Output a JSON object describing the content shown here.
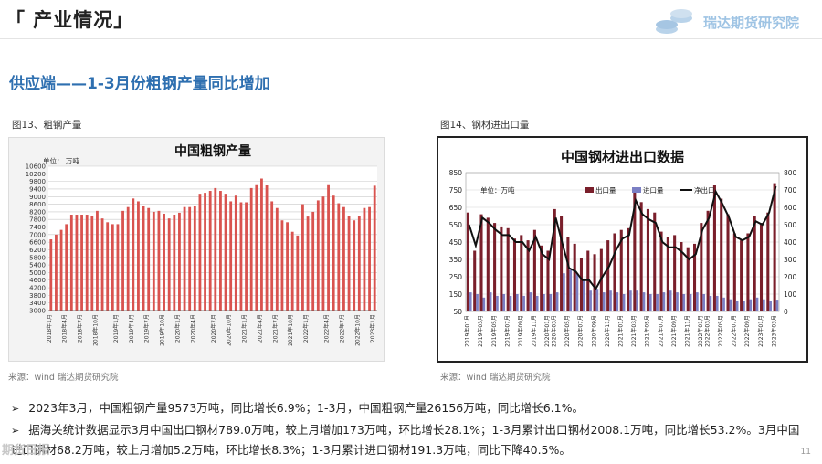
{
  "header": {
    "title": "「 产业情况」",
    "brand_name": "瑞达期货研究院"
  },
  "section": {
    "heading": "供应端——1-3月份粗钢产量同比增加"
  },
  "figures": [
    {
      "caption": "图13、粗钢产量",
      "source": "来源：wind   瑞达期货研究院"
    },
    {
      "caption": "图14、钢材进出口量",
      "source": "来源：wind   瑞达期货研究院"
    }
  ],
  "bullets": [
    "2023年3月，中国粗钢产量9573万吨，同比增长6.9%；1-3月，中国粗钢产量26156万吨，同比增长6.1%。",
    "据海关统计数据显示3月中国出口钢材789.0万吨，较上月增加173万吨，环比增长28.1%；1-3月累计出口钢材2008.1万吨，同比增长53.2%。3月中国进口钢材68.2万吨，较上月增加5.2万吨，环比增长8.3%；1-3月累计进口钢材191.3万吨，同比下降40.5%。"
  ],
  "bullet_mark": "➢",
  "page_number": "11",
  "watermark": "期货日报",
  "colors": {
    "bar_red": "#d9534f",
    "bar_dark_red": "#7a1f2b",
    "bar_import": "#7b7fc4",
    "net_line": "#111111",
    "heading_blue": "#2e6fb0"
  },
  "chart_data": [
    {
      "type": "bar",
      "title": "中国粗钢产量",
      "unit_label": "单位：   万吨",
      "ylim": [
        3000,
        10600
      ],
      "yticks": [
        3000,
        3400,
        3800,
        4200,
        4600,
        5000,
        5400,
        5800,
        6200,
        6600,
        7000,
        7400,
        7800,
        8200,
        8600,
        9000,
        9400,
        9800,
        10200,
        10600
      ],
      "grid": true,
      "x_tick_labels": [
        "2018年1月",
        "2018年4月",
        "2018年7月",
        "2018年10月",
        "2019年1月",
        "2019年4月",
        "2019年7月",
        "2019年10月",
        "2020年1月",
        "2020年4月",
        "2020年7月",
        "2020年10月",
        "2021年1月",
        "2021年4月",
        "2021年7月",
        "2021年10月",
        "2022年1月",
        "2022年4月",
        "2022年7月",
        "2022年10月",
        "2023年1月"
      ],
      "values": [
        6750,
        7000,
        7250,
        7550,
        8050,
        8050,
        8050,
        8050,
        8000,
        8250,
        7850,
        7650,
        7550,
        7550,
        8250,
        8450,
        8900,
        8750,
        8500,
        8400,
        8200,
        8250,
        8100,
        7850,
        8050,
        8150,
        8450,
        8450,
        8500,
        9150,
        9200,
        9300,
        9450,
        9300,
        9150,
        8750,
        9050,
        8700,
        8700,
        9450,
        9650,
        9950,
        9600,
        8750,
        8400,
        7750,
        7650,
        7150,
        6950,
        8600,
        7950,
        8200,
        8800,
        9000,
        9650,
        9050,
        8650,
        8450,
        8000,
        7750,
        8000,
        8400,
        8450,
        9573
      ]
    },
    {
      "type": "bar+line",
      "title": "中国钢材进出口数据",
      "unit_label": "单位：万吨",
      "left_ylim": [
        50,
        850
      ],
      "left_yticks": [
        50,
        150,
        250,
        350,
        450,
        550,
        650,
        750,
        850
      ],
      "right_ylim": [
        0,
        800
      ],
      "right_yticks": [
        0,
        100,
        200,
        300,
        400,
        500,
        600,
        700,
        800
      ],
      "grid": true,
      "legend": [
        "出口量",
        "进口量",
        "净出口"
      ],
      "x_tick_labels": [
        "2019年01月",
        "2019年03月",
        "2019年05月",
        "2019年07月",
        "2019年09月",
        "2019年11月",
        "2020年01月",
        "2020年03月",
        "2020年05月",
        "2020年07月",
        "2020年09月",
        "2020年11月",
        "2021年01月",
        "2021年03月",
        "2021年05月",
        "2021年07月",
        "2021年09月",
        "2021年11月",
        "2022年01月",
        "2022年03月",
        "2022年05月",
        "2022年07月",
        "2022年09月",
        "2023年01月",
        "2023年03月"
      ],
      "series": [
        {
          "name": "出口量",
          "axis": "left",
          "values": [
            620,
            400,
            610,
            590,
            560,
            540,
            530,
            470,
            490,
            460,
            520,
            430,
            400,
            640,
            600,
            480,
            440,
            360,
            400,
            380,
            410,
            460,
            500,
            520,
            530,
            760,
            680,
            640,
            620,
            510,
            480,
            490,
            450,
            420,
            440,
            560,
            630,
            780,
            700,
            610,
            500,
            460,
            500,
            600,
            560,
            620,
            789
          ]
        },
        {
          "name": "进口量",
          "axis": "right",
          "values": [
            110,
            100,
            80,
            110,
            90,
            100,
            90,
            100,
            90,
            110,
            90,
            100,
            100,
            110,
            220,
            240,
            220,
            190,
            120,
            130,
            110,
            120,
            110,
            100,
            120,
            120,
            110,
            100,
            100,
            110,
            120,
            110,
            100,
            100,
            110,
            100,
            90,
            90,
            80,
            70,
            60,
            60,
            70,
            80,
            70,
            60,
            68
          ]
        },
        {
          "name": "净出口",
          "axis": "right",
          "values": [
            500,
            380,
            540,
            510,
            470,
            440,
            440,
            400,
            400,
            350,
            430,
            330,
            300,
            540,
            390,
            250,
            230,
            180,
            180,
            130,
            200,
            260,
            350,
            420,
            440,
            640,
            560,
            530,
            510,
            400,
            370,
            370,
            340,
            300,
            330,
            470,
            540,
            690,
            620,
            540,
            430,
            410,
            430,
            520,
            500,
            570,
            721
          ]
        }
      ]
    }
  ]
}
